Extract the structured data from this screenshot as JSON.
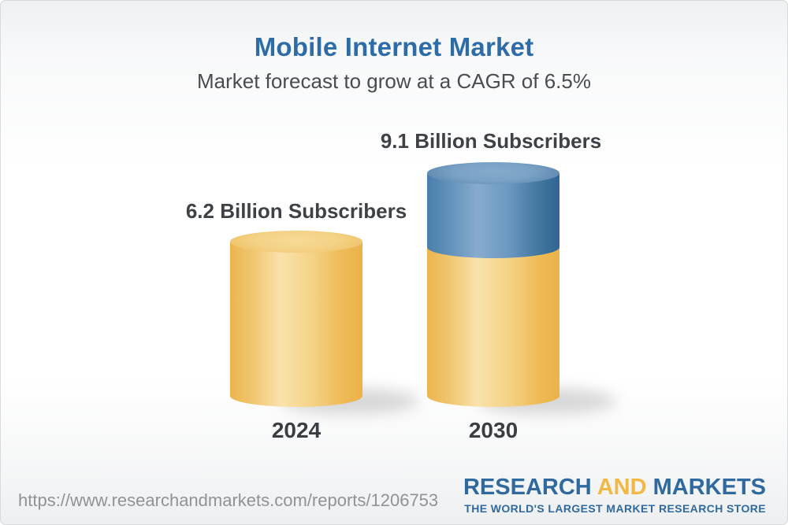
{
  "header": {
    "title": "Mobile Internet Market",
    "subtitle": "Market forecast to grow at a CAGR of 6.5%"
  },
  "chart_data": {
    "type": "bar",
    "title": "Mobile Internet Market",
    "subtitle": "Market forecast to grow at a CAGR of 6.5%",
    "cagr_percent": 6.5,
    "categories": [
      "2024",
      "2030"
    ],
    "values": [
      6.2,
      9.1
    ],
    "unit": "Billion Subscribers",
    "bar_labels": [
      "6.2 Billion Subscribers",
      "9.1 Billion Subscribers"
    ],
    "legend_position": "none",
    "grid": false,
    "colors": {
      "base_segment": "#f0c162",
      "growth_segment": "#4a7fac",
      "title_text": "#2e6ca8",
      "label_text": "#3e4247"
    }
  },
  "bars": [
    {
      "category": "2024",
      "value": 6.2,
      "value_label": "6.2 Billion Subscribers"
    },
    {
      "category": "2030",
      "value": 9.1,
      "value_label": "9.1 Billion Subscribers"
    }
  ],
  "footer": {
    "url": "https://www.researchandmarkets.com/reports/1206753",
    "logo": {
      "research": "RESEARCH",
      "and": "AND",
      "markets": "MARKETS",
      "tagline": "THE WORLD'S LARGEST MARKET RESEARCH STORE"
    }
  }
}
